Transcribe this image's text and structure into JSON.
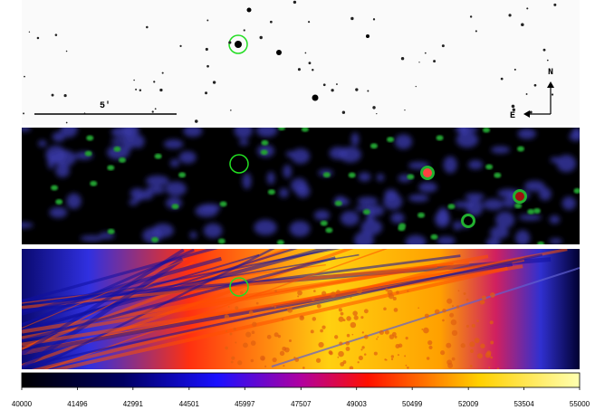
{
  "scale_bar": {
    "label": "5′"
  },
  "compass": {
    "north": "N",
    "east": "E"
  },
  "colorbar": {
    "range": [
      40000,
      55000
    ],
    "ticks": [
      40000,
      41496,
      42991,
      44501,
      45997,
      47507,
      49003,
      50499,
      52009,
      53504,
      55000
    ]
  }
}
